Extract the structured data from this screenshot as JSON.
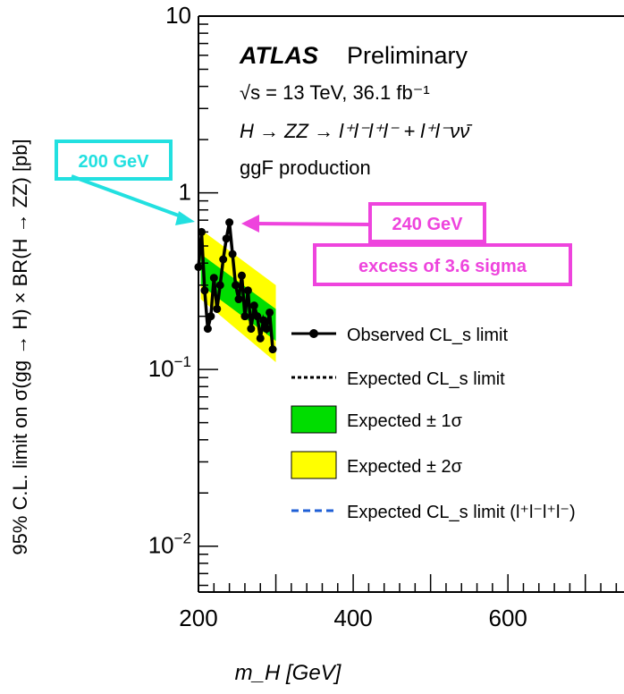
{
  "chart_data": {
    "type": "line",
    "title": "ATLAS",
    "subtitle": "Preliminary",
    "annotations": {
      "energy_lumi": "√s = 13 TeV, 36.1 fb⁻¹",
      "process": "H → ZZ → l⁺l⁻l⁺l⁻ + l⁺l⁻νν̄",
      "production": "ggF production"
    },
    "xlabel": "m_H [GeV]",
    "ylabel": "95% C.L. limit on σ(gg → H) × BR(H → ZZ) [pb]",
    "xlim": [
      200,
      750
    ],
    "ylim": [
      0.0055,
      10
    ],
    "yscale": "log",
    "x_ticks": [
      200,
      400,
      600
    ],
    "y_ticks": [
      {
        "value": 10,
        "base": "10",
        "exp": ""
      },
      {
        "value": 1,
        "base": "1",
        "exp": ""
      },
      {
        "value": 0.1,
        "base": "10",
        "exp": "−1"
      },
      {
        "value": 0.01,
        "base": "10",
        "exp": "−2"
      }
    ],
    "legend": {
      "placement": "right",
      "entries": [
        {
          "key": "observed",
          "label": "Observed CL_s limit"
        },
        {
          "key": "expected",
          "label": "Expected CL_s limit"
        },
        {
          "key": "band1",
          "label": "Expected ± 1σ"
        },
        {
          "key": "band2",
          "label": "Expected ± 2σ"
        },
        {
          "key": "expected4l",
          "label": "Expected CL_s limit (l⁺l⁻l⁺l⁻)"
        }
      ]
    },
    "colors": {
      "observed": "#000000",
      "band1": "#00dd00",
      "band2": "#ffff00",
      "expected4l": "#1f5fd6",
      "cyan_annotation": "#22e0e0",
      "magenta_annotation": "#ee44dd"
    },
    "series": [
      {
        "name": "Observed CL_s limit",
        "x": [
          200,
          204,
          208,
          212,
          216,
          220,
          224,
          228,
          232,
          236,
          240,
          244,
          248,
          252,
          256,
          260,
          264,
          268,
          272,
          276,
          280,
          284,
          288,
          292,
          296
        ],
        "y": [
          0.38,
          0.6,
          0.28,
          0.17,
          0.2,
          0.33,
          0.22,
          0.3,
          0.42,
          0.55,
          0.68,
          0.45,
          0.3,
          0.25,
          0.34,
          0.2,
          0.28,
          0.17,
          0.23,
          0.2,
          0.15,
          0.19,
          0.17,
          0.21,
          0.13
        ]
      }
    ],
    "band_2sigma": {
      "x": [
        203,
        300
      ],
      "upper": [
        0.62,
        0.3
      ],
      "lower": [
        0.25,
        0.11
      ]
    },
    "band_1sigma": {
      "x": [
        203,
        300
      ],
      "upper": [
        0.45,
        0.22
      ],
      "lower": [
        0.3,
        0.145
      ]
    },
    "callouts": [
      {
        "label": "200 GeV",
        "x": 200,
        "y": 0.85
      },
      {
        "label": "240 GeV",
        "line2": "excess of 3.6 sigma",
        "x": 245,
        "y": 0.82
      }
    ]
  }
}
